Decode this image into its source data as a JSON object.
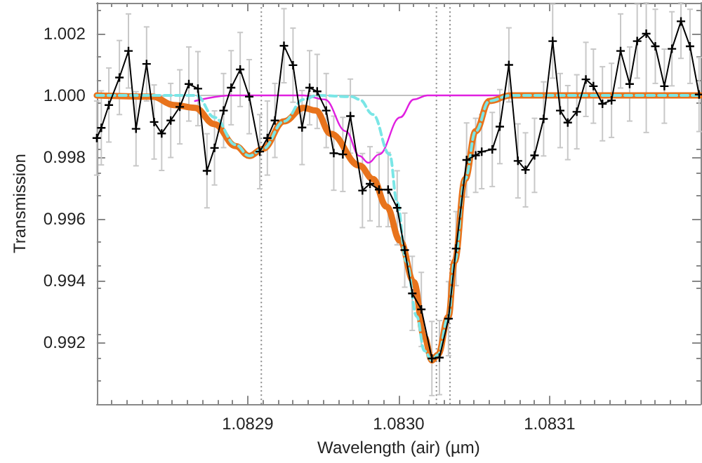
{
  "chart_data": {
    "type": "line",
    "xlabel": "Wavelength (air) (µm)",
    "ylabel": "Transmission",
    "xlim": [
      1.0828,
      1.0832
    ],
    "ylim": [
      0.99,
      1.003
    ],
    "xticks": [
      1.0829,
      {
        "value": 1.083,
        "label": "1.0830"
      },
      1.0831
    ],
    "yticks": [
      0.992,
      0.994,
      0.996,
      0.998,
      {
        "value": 1,
        "label": "1.000"
      },
      1.002
    ],
    "grid": false,
    "ref_lines": [
      {
        "axis": "y",
        "value": 1,
        "color": "#c0c0c0",
        "line_style": "solid"
      },
      {
        "axis": "x",
        "value": 1.082909,
        "color": "#888888",
        "line_style": "dotted"
      },
      {
        "axis": "x",
        "value": 1.083025,
        "color": "#888888",
        "line_style": "dotted"
      },
      {
        "axis": "x",
        "value": 1.083034,
        "color": "#888888",
        "line_style": "dotted"
      }
    ],
    "series": [
      {
        "color": "#000000",
        "marker": "cross",
        "line_style": "solid",
        "x": [
          1.0828,
          1.082803,
          1.082808,
          1.082815,
          1.082821,
          1.082826,
          1.082833,
          1.082838,
          1.082843,
          1.082849,
          1.082855,
          1.082861,
          1.082867,
          1.082873,
          1.082878,
          1.082884,
          1.082889,
          1.082895,
          1.082901,
          1.082908,
          1.082913,
          1.082918,
          1.082924,
          1.08293,
          1.082936,
          1.082941,
          1.082946,
          1.082952,
          1.082957,
          1.082963,
          1.082968,
          1.082976,
          1.082981,
          1.082987,
          1.082993,
          1.082999,
          1.083004,
          1.083009,
          1.083015,
          1.083022,
          1.083027,
          1.083033,
          1.083038,
          1.083045,
          1.083051,
          1.083055,
          1.083062,
          1.083067,
          1.083073,
          1.083079,
          1.083084,
          1.08309,
          1.083096,
          1.083102,
          1.083107,
          1.083112,
          1.083118,
          1.083124,
          1.083129,
          1.083135,
          1.083141,
          1.083147,
          1.083153,
          1.083158,
          1.083164,
          1.08317,
          1.083176,
          1.083181,
          1.083187,
          1.083193,
          1.083199
        ],
        "values": [
          0.99862,
          0.99895,
          0.99969,
          1.00058,
          1.00144,
          0.99892,
          1.00102,
          0.99914,
          0.99877,
          0.99919,
          0.99963,
          1.00037,
          1.00022,
          0.99756,
          0.9983,
          0.99951,
          1.00025,
          1.00084,
          0.99996,
          0.99818,
          0.99862,
          0.99919,
          1.00161,
          1.00098,
          0.99896,
          1.00025,
          1.00013,
          0.99951,
          0.99813,
          0.99809,
          0.99933,
          0.99692,
          0.99714,
          0.99695,
          0.99695,
          0.99636,
          0.99499,
          0.99359,
          0.99307,
          0.99148,
          0.99151,
          0.99277,
          0.99504,
          0.99791,
          0.99806,
          0.99818,
          0.99825,
          0.99899,
          1.00099,
          0.99788,
          0.99759,
          0.99806,
          0.99924,
          1.00176,
          0.99951,
          0.99912,
          0.99947,
          1.00052,
          1.0003,
          0.99973,
          0.99984,
          1.00144,
          1.00037,
          1.00176,
          1.002,
          1.00159,
          1.0003,
          1.00151,
          1.0024,
          1.00159,
          1.00003
        ],
        "errors": [
          0.0012,
          0.0012,
          0.0012,
          0.0012,
          0.0012,
          0.0012,
          0.0012,
          0.0012,
          0.0012,
          0.0012,
          0.0012,
          0.0012,
          0.0012,
          0.0012,
          0.0012,
          0.0012,
          0.0012,
          0.0012,
          0.0012,
          0.0012,
          0.0012,
          0.0012,
          0.0012,
          0.0012,
          0.0012,
          0.0012,
          0.0012,
          0.0012,
          0.0012,
          0.0012,
          0.0012,
          0.0012,
          0.0012,
          0.0012,
          0.0012,
          0.0012,
          0.0012,
          0.0012,
          0.0012,
          0.0012,
          0.0012,
          0.0012,
          0.0012,
          0.0012,
          0.0012,
          0.0012,
          0.0012,
          0.0012,
          0.0012,
          0.0012,
          0.0012,
          0.0012,
          0.0012,
          0.0012,
          0.0012,
          0.0012,
          0.0012,
          0.0012,
          0.0012,
          0.0012,
          0.0012,
          0.0012,
          0.0012,
          0.0012,
          [
            0.9988,
            1.003
          ],
          0.0012,
          0.0012,
          0.0012,
          [
            1.0012,
            1.003
          ],
          0.0012,
          0.0012
        ]
      },
      {
        "color": "#e8731c",
        "marker": "none",
        "line_style": "solid",
        "x": [
          1.0828,
          1.082837,
          1.082851,
          1.082865,
          1.082878,
          1.082892,
          1.082901,
          1.08291,
          1.082924,
          1.082937,
          1.082945,
          1.082955,
          1.082974,
          1.082983,
          1.082992,
          1.083001,
          1.08301,
          1.083017,
          1.083022,
          1.083026,
          1.083033,
          1.083037,
          1.083044,
          1.083051,
          1.08306,
          1.083074,
          1.0832
        ],
        "values": [
          1.0,
          0.99996,
          0.99969,
          0.9996,
          0.99907,
          0.99836,
          0.99804,
          0.99827,
          0.99916,
          0.9996,
          0.99951,
          0.99876,
          0.99773,
          0.99729,
          0.9964,
          0.99529,
          0.99396,
          0.99218,
          0.99142,
          0.9916,
          0.99284,
          0.99462,
          0.99729,
          0.99884,
          0.99982,
          1.0,
          1.0
        ]
      },
      {
        "color": "#7ae6e6",
        "marker": "none",
        "line_style": "dashed",
        "x": [
          1.0828,
          1.082866,
          1.082878,
          1.082892,
          1.082901,
          1.08291,
          1.082924,
          1.082937,
          1.082946,
          1.082969,
          1.082974,
          1.082983,
          1.082994,
          1.082999,
          1.083005,
          1.083012,
          1.083017,
          1.083022,
          1.083026,
          1.083033,
          1.083037,
          1.083044,
          1.083051,
          1.08306,
          1.083074,
          1.0832
        ],
        "values": [
          1.0,
          1.0,
          0.99929,
          0.9984,
          0.99804,
          0.99827,
          0.99916,
          0.99987,
          1.0,
          0.99996,
          0.99987,
          0.99938,
          0.99809,
          0.99653,
          0.99462,
          0.99284,
          0.99173,
          0.99142,
          0.9916,
          0.99284,
          0.99462,
          0.99729,
          0.99884,
          0.99982,
          1.0,
          1.0
        ]
      },
      {
        "color": "#e020e0",
        "marker": "none",
        "line_style": "solid",
        "x": [
          1.082865,
          1.082889,
          1.082937,
          1.082951,
          1.082965,
          1.082974,
          1.08298,
          1.082987,
          1.083001,
          1.08301,
          1.083019,
          1.0832
        ],
        "values": [
          0.99982,
          1.0,
          1.0,
          0.99987,
          0.99884,
          0.99804,
          0.99782,
          0.99809,
          0.99929,
          0.99987,
          1.0,
          1.0
        ]
      }
    ]
  }
}
